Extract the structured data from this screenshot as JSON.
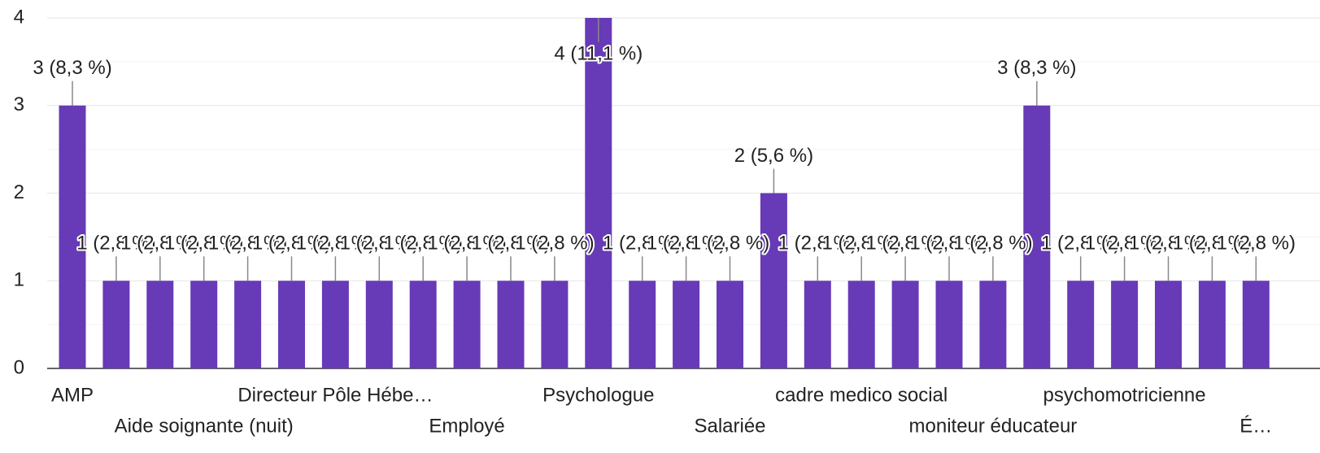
{
  "chart_data": {
    "type": "bar",
    "categories": [
      "AMP",
      null,
      null,
      "Aide soignante (nuit)",
      null,
      null,
      "Directeur Pôle Hébe…",
      null,
      null,
      "Employé",
      null,
      null,
      "Psychologue",
      null,
      null,
      "Salariée",
      null,
      null,
      "cadre medico social",
      null,
      null,
      "moniteur éducateur",
      null,
      null,
      "psychomotricienne",
      null,
      null,
      "É…"
    ],
    "values": [
      3,
      1,
      1,
      1,
      1,
      1,
      1,
      1,
      1,
      1,
      1,
      1,
      4,
      1,
      1,
      1,
      2,
      1,
      1,
      1,
      1,
      1,
      3,
      1,
      1,
      1,
      1,
      1
    ],
    "value_labels": [
      "3 (8,3 %)",
      "1 (2,8 %)",
      "1 (2,8 %)",
      "1 (2,8 %)",
      "1 (2,8 %)",
      "1 (2,8 %)",
      "1 (2,8 %)",
      "1 (2,8 %)",
      "1 (2,8 %)",
      "1 (2,8 %)",
      "1 (2,8 %)",
      "1 (2,8 %)",
      "4 (11,1 %)",
      "1 (2,8 %)",
      "1 (2,8 %)",
      "1 (2,8 %)",
      "2 (5,6 %)",
      "1 (2,8 %)",
      "1 (2,8 %)",
      "1 (2,8 %)",
      "1 (2,8 %)",
      "1 (2,8 %)",
      "3 (8,3 %)",
      "1 (2,8 %)",
      "1 (2,8 %)",
      "1 (2,8 %)",
      "1 (2,8 %)",
      "1 (2,8 %)"
    ],
    "color": "#673ab7",
    "ylim": [
      0,
      4
    ],
    "yticks": [
      0,
      1,
      2,
      3,
      4
    ],
    "grid": true
  }
}
